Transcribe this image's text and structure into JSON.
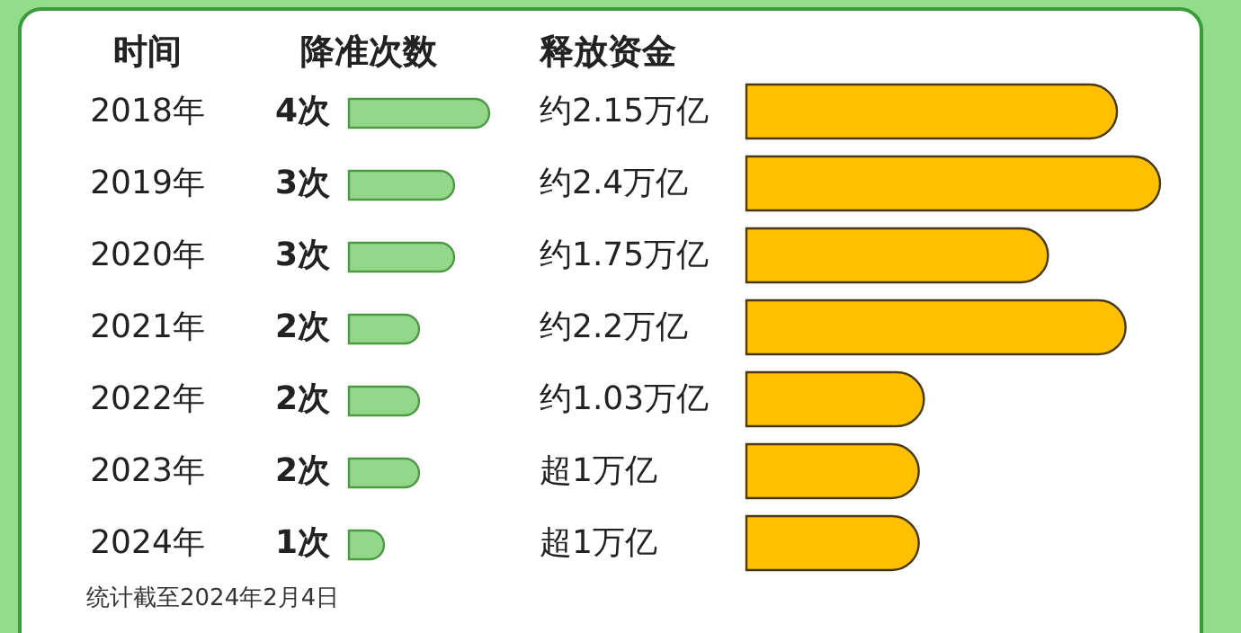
{
  "chart_data": [
    {
      "type": "bar",
      "orientation": "horizontal",
      "ylabel": "时间",
      "xlabel": "降准次数",
      "categories": [
        "2018年",
        "2019年",
        "2020年",
        "2021年",
        "2022年",
        "2023年",
        "2024年"
      ],
      "values": [
        4,
        3,
        3,
        2,
        2,
        2,
        1
      ],
      "value_labels": [
        "4次",
        "3次",
        "3次",
        "2次",
        "2次",
        "2次",
        "1次"
      ],
      "color": "#93d88a",
      "annotations": [
        "统计截至2024年2月4日"
      ]
    },
    {
      "type": "bar",
      "orientation": "horizontal",
      "xlabel": "释放资金",
      "categories": [
        null,
        null,
        null,
        null,
        null,
        null,
        null
      ],
      "values": [
        2.15,
        2.4,
        1.75,
        2.2,
        1.03,
        1.0,
        1.0
      ],
      "value_labels": [
        "约2.15万亿",
        "约2.4万亿",
        "约1.75万亿",
        "约2.2万亿",
        "约1.03万亿",
        "超1万亿",
        "超1万亿"
      ],
      "color": "#ffc000"
    }
  ]
}
